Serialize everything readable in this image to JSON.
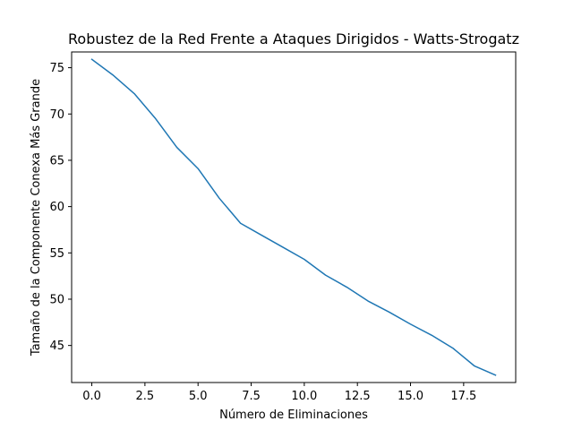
{
  "chart_data": {
    "type": "line",
    "title": "Robustez de la Red Frente a Ataques Dirigidos - Watts-Strogatz",
    "xlabel": "Número de Eliminaciones",
    "ylabel": "Tamaño de la Componente Conexa Más Grande",
    "xlim": [
      -0.95,
      19.95
    ],
    "ylim": [
      41.0,
      76.7
    ],
    "x_ticks": [
      0.0,
      2.5,
      5.0,
      7.5,
      10.0,
      12.5,
      15.0,
      17.5
    ],
    "x_tick_labels": [
      "0.0",
      "2.5",
      "5.0",
      "7.5",
      "10.0",
      "12.5",
      "15.0",
      "17.5"
    ],
    "y_ticks": [
      45,
      50,
      55,
      60,
      65,
      70,
      75
    ],
    "y_tick_labels": [
      "45",
      "50",
      "55",
      "60",
      "65",
      "70",
      "75"
    ],
    "grid": false,
    "legend": "none",
    "series": [
      {
        "color": "#1f77b4",
        "x": [
          0,
          1,
          2,
          3,
          4,
          5,
          6,
          7,
          8,
          9,
          10,
          11,
          12,
          13,
          14,
          15,
          16,
          17,
          18,
          19
        ],
        "y": [
          75.9,
          74.2,
          72.2,
          69.5,
          66.4,
          64.1,
          60.9,
          58.2,
          56.9,
          55.6,
          54.3,
          52.6,
          51.3,
          49.8,
          48.6,
          47.3,
          46.1,
          44.7,
          42.8,
          41.8
        ]
      }
    ]
  }
}
